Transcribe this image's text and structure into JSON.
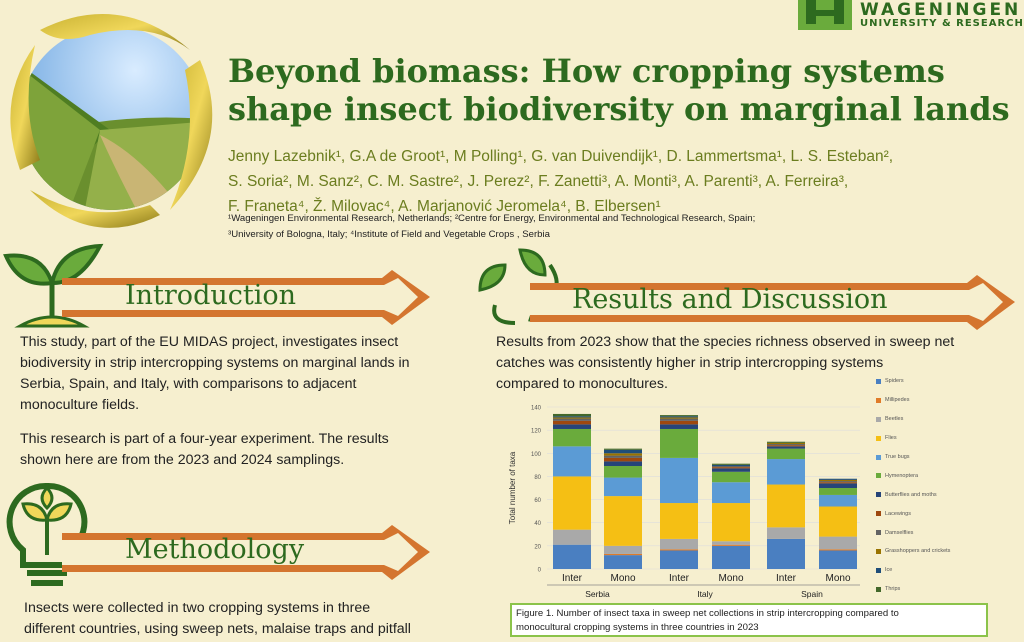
{
  "header": {
    "title_line1": "Beyond biomass: How cropping systems",
    "title_line2": "shape insect biodiversity on marginal lands",
    "authors_line1": "Jenny Lazebnik¹, G.A de Groot¹, M Polling¹, G. van Duivendijk¹, D. Lammertsma¹,  L. S. Esteban²,",
    "authors_line2": "S. Soria², M. Sanz²,  C. M. Sastre², J. Perez²,  F. Zanetti³, A. Monti³, A. Parenti³, A. Ferreira³,",
    "authors_line3": "F. Franeta⁴, Ž. Milovac⁴, A. Marjanović Jeromela⁴, B. Elbersen¹",
    "affil_line1": "¹Wageningen Environmental Research, Netherlands; ²Centre for Energy, Environmental and Technological Research, Spain;",
    "affil_line2": "³University of Bologna, Italy; ⁴Institute of Field and Vegetable Crops , Serbia"
  },
  "logo": {
    "line1": "WAGENINGEN",
    "line2": "UNIVERSITY & RESEARCH"
  },
  "introduction": {
    "heading": "Introduction",
    "para1_l1": "This study, part of the EU MIDAS project, investigates insect",
    "para1_l2": "biodiversity in strip intercropping systems on marginal lands in",
    "para1_l3": "Serbia, Spain, and Italy, with comparisons to adjacent",
    "para1_l4": "monoculture fields.",
    "para2_l1": "This research is part of a four-year experiment. The results",
    "para2_l2": "shown here are from the 2023 and 2024 samplings."
  },
  "methodology": {
    "heading": "Methodology",
    "para_l1": "Insects were collected in two cropping systems in three",
    "para_l2": "different countries, using sweep nets, malaise traps and pitfall"
  },
  "results": {
    "heading": "Results and Discussion",
    "para_l1": "Results from 2023 show that the species richness observed in sweep net",
    "para_l2": "catches was consistently higher in strip intercropping systems",
    "para_l3": "compared to monocultures.",
    "caption_l1": "Figure 1. Number of insect taxa in sweep net collections in strip intercropping compared to",
    "caption_l2": "monocultural cropping systems in three countries in 2023"
  },
  "colors": {
    "accent_green": "#2d6a1f",
    "author_olive": "#6b7d1f",
    "banner_orange": "#d4752f",
    "caption_border": "#8bc34a"
  },
  "icons": [
    "sprout-icon",
    "recycle-leaf-icon",
    "lightbulb-leaf-icon",
    "wageningen-logo-icon"
  ],
  "chart_data": {
    "type": "bar",
    "stacked": true,
    "ylabel": "Total number of taxa",
    "ylim": [
      0,
      140
    ],
    "yticks": [
      0,
      20,
      40,
      60,
      80,
      100,
      120,
      140
    ],
    "categories": [
      "Inter",
      "Mono",
      "Inter",
      "Mono",
      "Inter",
      "Mono"
    ],
    "groups": [
      {
        "label": "Serbia",
        "indices": [
          0,
          1
        ]
      },
      {
        "label": "Italy",
        "indices": [
          2,
          3
        ]
      },
      {
        "label": "Spain",
        "indices": [
          4,
          5
        ]
      }
    ],
    "legend_position": "right",
    "grid": true,
    "series": [
      {
        "name": "Spiders",
        "color": "#4a7fc1",
        "values": [
          21,
          12,
          16,
          20,
          26,
          16
        ]
      },
      {
        "name": "Millipedes",
        "color": "#e07b28",
        "values": [
          0,
          1,
          1,
          1,
          0,
          1
        ]
      },
      {
        "name": "Beetles",
        "color": "#a9a9a9",
        "values": [
          13,
          7,
          9,
          3,
          10,
          11
        ]
      },
      {
        "name": "Flies",
        "color": "#f5bf14",
        "values": [
          46,
          43,
          31,
          33,
          37,
          26
        ]
      },
      {
        "name": "True bugs",
        "color": "#5b9bd5",
        "values": [
          26,
          16,
          39,
          18,
          22,
          10
        ]
      },
      {
        "name": "Hymenoptera",
        "color": "#6aab3c",
        "values": [
          15,
          10,
          25,
          9,
          9,
          6
        ]
      },
      {
        "name": "Butterflies and moths",
        "color": "#264478",
        "values": [
          4,
          4,
          4,
          3,
          2,
          4
        ]
      },
      {
        "name": "Lacewings",
        "color": "#9e480e",
        "values": [
          3,
          3,
          3,
          1,
          1,
          1
        ]
      },
      {
        "name": "Damselflies",
        "color": "#636363",
        "values": [
          2,
          2,
          2,
          1,
          1,
          1
        ]
      },
      {
        "name": "Grasshoppers and crickets",
        "color": "#997300",
        "values": [
          1,
          2,
          1,
          0,
          1,
          1
        ]
      },
      {
        "name": "Ice",
        "color": "#1f4e79",
        "values": [
          1,
          3,
          1,
          1,
          0,
          1
        ]
      },
      {
        "name": "Thrips",
        "color": "#43682b",
        "values": [
          2,
          1,
          1,
          1,
          1,
          0
        ]
      }
    ]
  }
}
